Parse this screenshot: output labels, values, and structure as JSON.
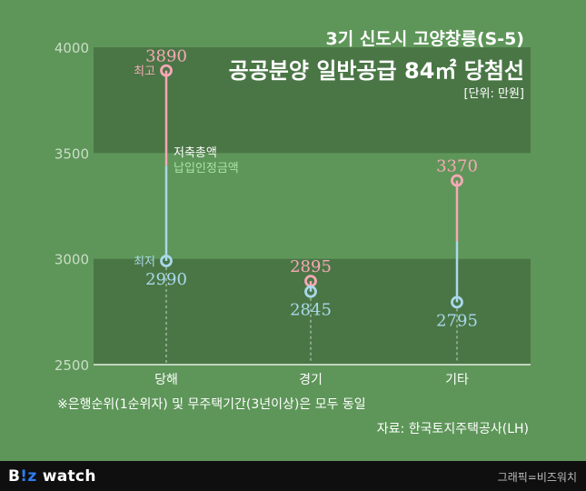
{
  "header": {
    "title_line1": "3기 신도시 고양창릉(S-5)",
    "title_line2": "공공분양 일반공급 84㎡ 당첨선",
    "unit": "[단위: 만원]"
  },
  "legend": {
    "total_savings": "저축총액",
    "approved_payment": "납입인정금액"
  },
  "labels": {
    "high": "최고",
    "low": "최저"
  },
  "footer": {
    "note": "※은행순위(1순위자) 및 무주택기간(3년이상)은 모두 동일",
    "source": "자료: 한국토지주택공사(LH)"
  },
  "branding": {
    "logo_b": "B",
    "logo_iz": "!z",
    "logo_watch": " watch",
    "credit": "그래픽=비즈워치"
  },
  "colors": {
    "background": "#5e9659",
    "band": "#4a7646",
    "high": "#f6a8b6",
    "low": "#a9d8ea"
  },
  "chart_data": {
    "type": "range",
    "categories": [
      "당해",
      "경기",
      "기타"
    ],
    "series": [
      {
        "name": "최고",
        "values": [
          3890,
          2895,
          3370
        ]
      },
      {
        "name": "최저",
        "values": [
          2990,
          2845,
          2795
        ]
      }
    ],
    "yticks": [
      2500,
      3000,
      3500,
      4000
    ],
    "ylim": [
      2500,
      4000
    ],
    "grid": false
  }
}
